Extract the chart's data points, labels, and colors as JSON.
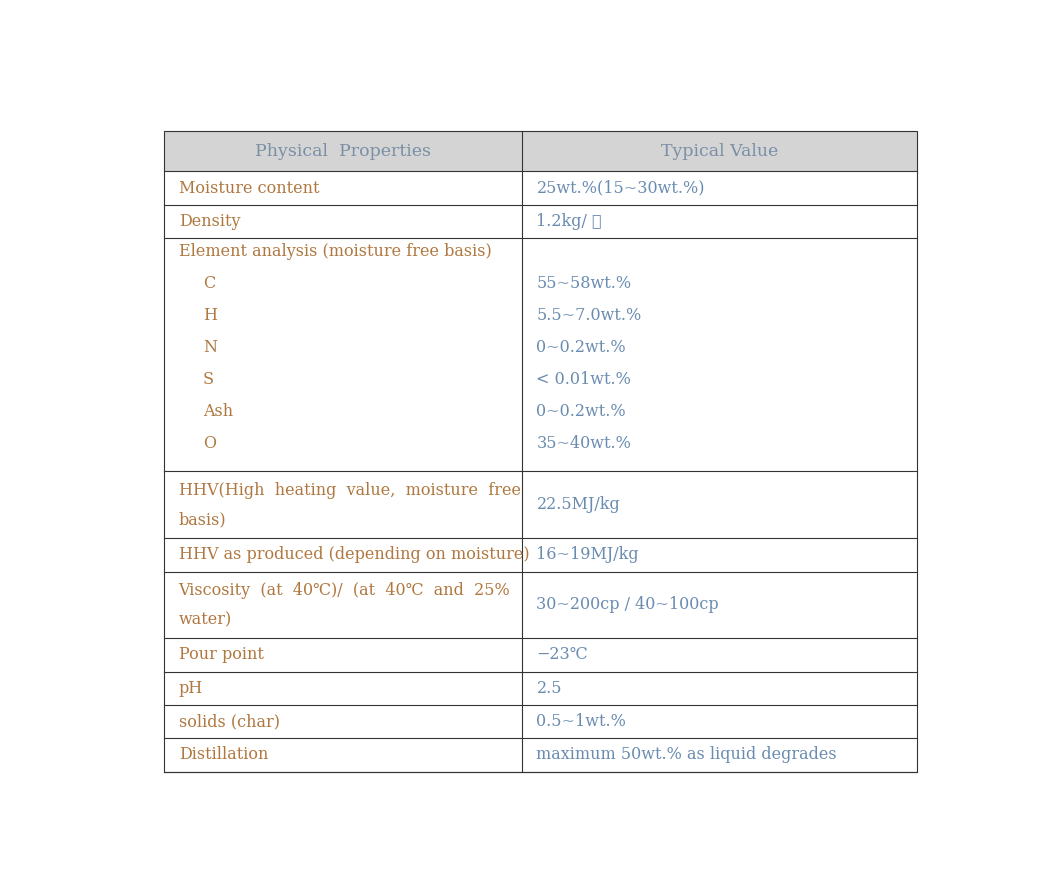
{
  "header": [
    "Physical  Properties",
    "Typical Value"
  ],
  "header_bg": "#d4d4d4",
  "header_text_color": "#7a8fa6",
  "col1_text_color": "#b07840",
  "col2_text_color": "#6a8cb0",
  "border_color": "#333333",
  "bg_color": "#ffffff",
  "rows": [
    {
      "col1_lines": [
        "Moisture content"
      ],
      "col2_lines": [
        "25wt.%(15~30wt.%)"
      ],
      "row_units": 1.0
    },
    {
      "col1_lines": [
        "Density"
      ],
      "col2_lines": [
        "1.2kg/ ℓ"
      ],
      "row_units": 1.0
    },
    {
      "col1_lines": [
        "Element analysis (moisture free basis)",
        "   C",
        "   H",
        "   N",
        "   S",
        "   Ash",
        "   O"
      ],
      "col2_lines": [
        "",
        "55~58wt.%",
        "5.5~7.0wt.%",
        "0~0.2wt.%",
        "< 0.01wt.%",
        "0~0.2wt.%",
        "35~40wt.%"
      ],
      "row_units": 7.0
    },
    {
      "col1_lines": [
        "HHV(High  heating  value,  moisture  free",
        "basis)"
      ],
      "col2_lines": [
        "22.5MJ/kg"
      ],
      "row_units": 2.0
    },
    {
      "col1_lines": [
        "HHV as produced (depending on moisture)"
      ],
      "col2_lines": [
        "16~19MJ/kg"
      ],
      "row_units": 1.0
    },
    {
      "col1_lines": [
        "Viscosity  (at  40℃)/  (at  40℃  and  25%",
        "water)"
      ],
      "col2_lines": [
        "30~200cp / 40~100cp"
      ],
      "row_units": 2.0
    },
    {
      "col1_lines": [
        "Pour point"
      ],
      "col2_lines": [
        "−23℃"
      ],
      "row_units": 1.0
    },
    {
      "col1_lines": [
        "pH"
      ],
      "col2_lines": [
        "2.5"
      ],
      "row_units": 1.0
    },
    {
      "col1_lines": [
        "solids (char)"
      ],
      "col2_lines": [
        "0.5~1wt.%"
      ],
      "row_units": 1.0
    },
    {
      "col1_lines": [
        "Distillation"
      ],
      "col2_lines": [
        "maximum 50wt.% as liquid degrades"
      ],
      "row_units": 1.0
    }
  ],
  "col_split": 0.475,
  "font_size": 11.5,
  "header_font_size": 12.5,
  "header_units": 1.2
}
